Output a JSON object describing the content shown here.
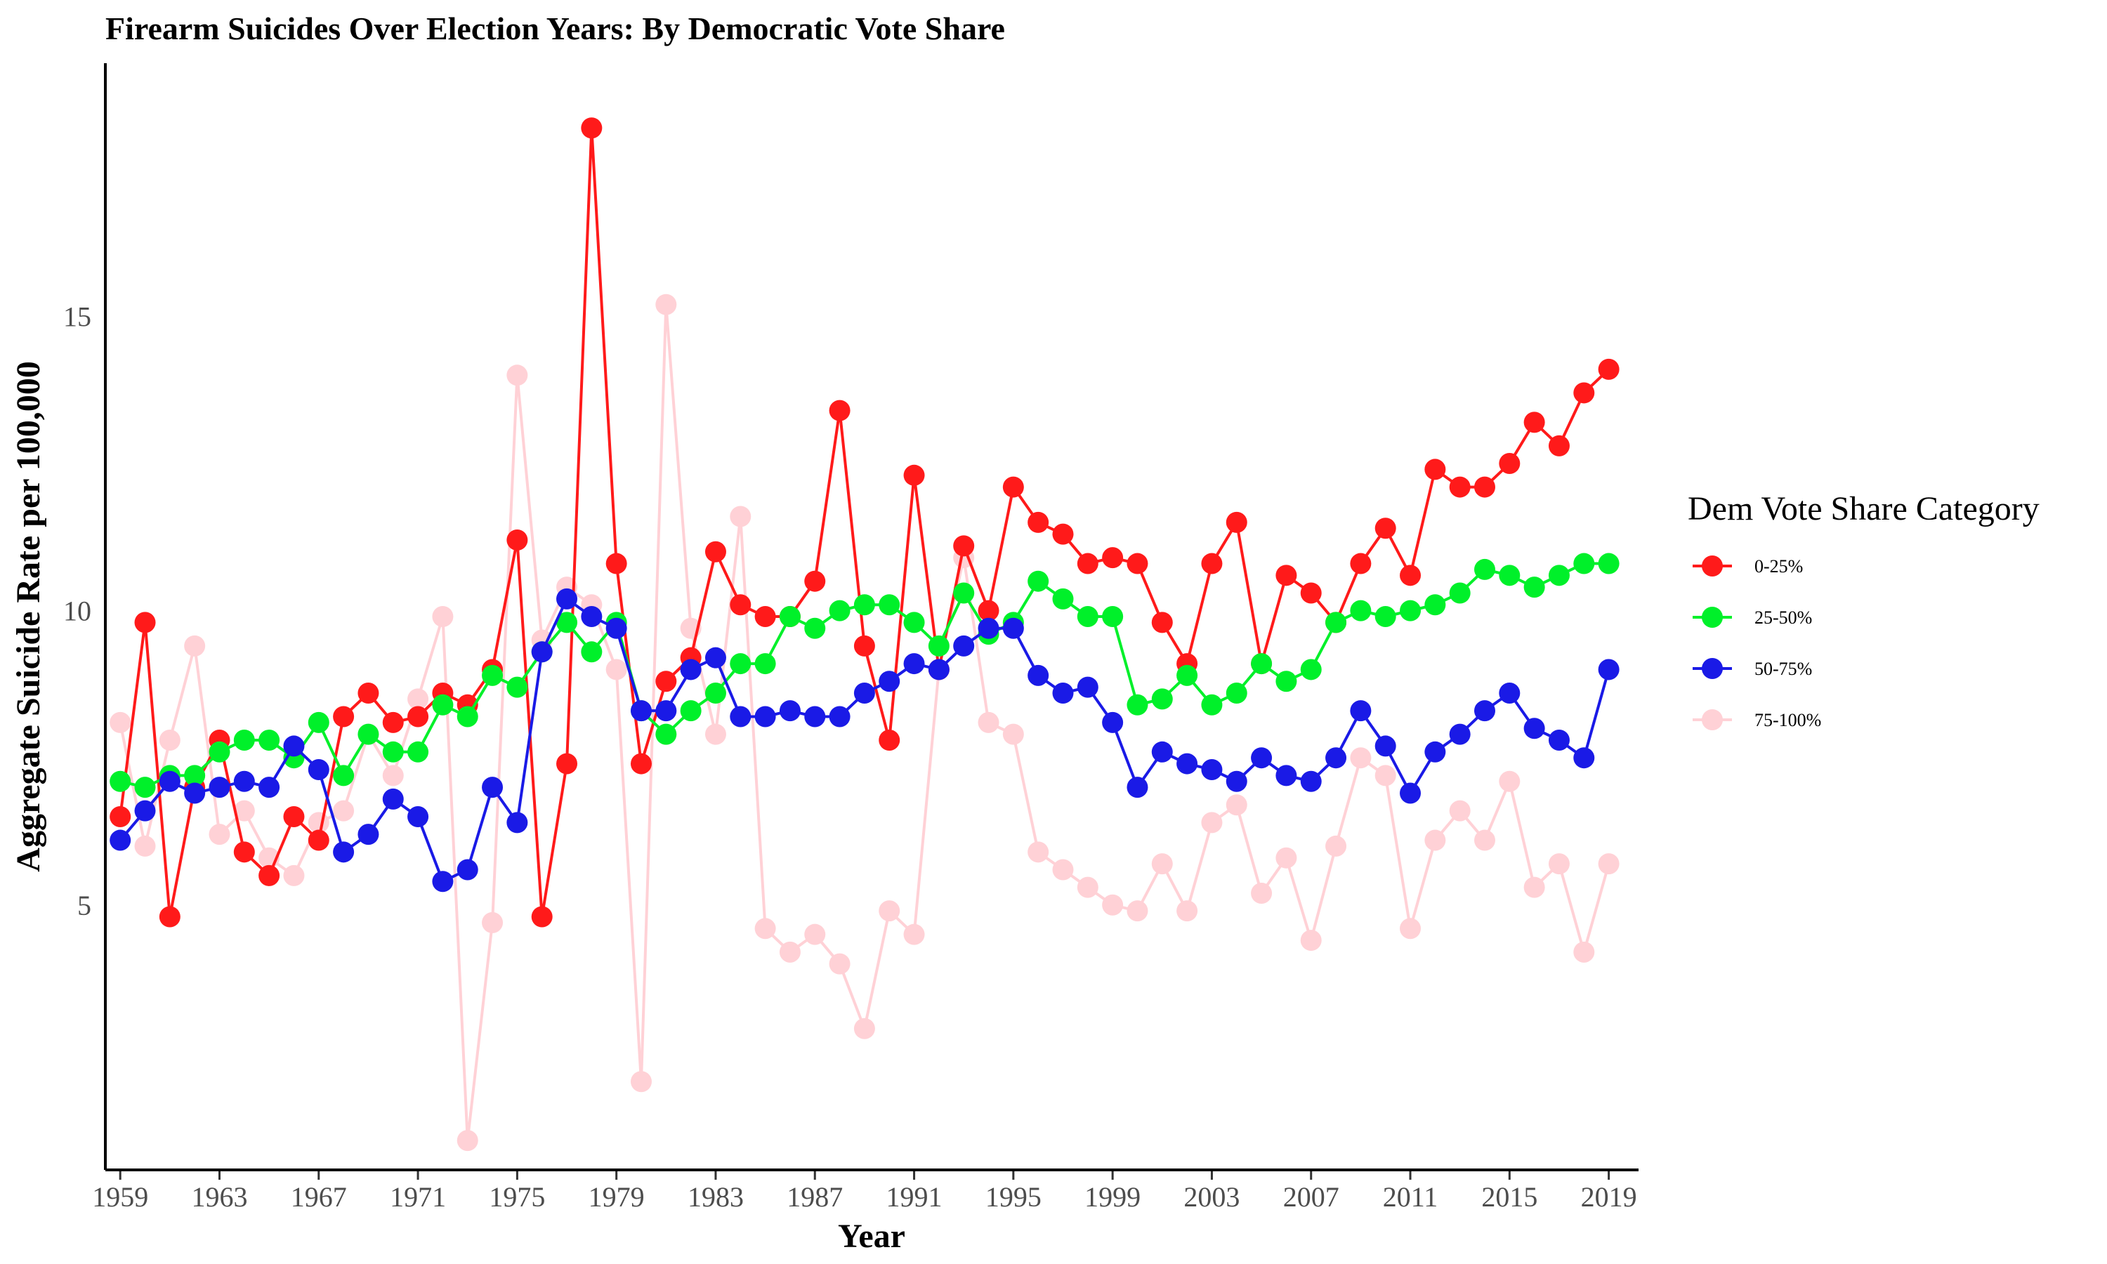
{
  "chart_data": {
    "type": "line",
    "title": "Firearm Suicides Over Election Years: By Democratic Vote Share",
    "xlabel": "Year",
    "ylabel": "Aggregate Suicide Rate per 100,000",
    "x_ticks": [
      "1959",
      "1963",
      "1967",
      "1971",
      "1975",
      "1979",
      "1983",
      "1987",
      "1991",
      "1995",
      "1999",
      "2003",
      "2007",
      "2011",
      "2015",
      "2019"
    ],
    "y_ticks": [
      "5",
      "10",
      "15"
    ],
    "xlim": [
      1958.4,
      2020.2
    ],
    "ylim": [
      0.5,
      19.3
    ],
    "grid": false,
    "legend": {
      "title": "Dem Vote Share Category",
      "position": "right"
    },
    "x": [
      1959,
      1960,
      1961,
      1962,
      1963,
      1964,
      1965,
      1966,
      1967,
      1968,
      1969,
      1970,
      1971,
      1972,
      1973,
      1974,
      1975,
      1976,
      1977,
      1978,
      1979,
      1980,
      1981,
      1982,
      1983,
      1984,
      1985,
      1986,
      1987,
      1988,
      1989,
      1990,
      1991,
      1992,
      1993,
      1994,
      1995,
      1996,
      1997,
      1998,
      1999,
      2000,
      2001,
      2002,
      2003,
      2004,
      2005,
      2006,
      2007,
      2008,
      2009,
      2010,
      2011,
      2012,
      2013,
      2014,
      2015,
      2016,
      2017,
      2018,
      2019
    ],
    "series": [
      {
        "name": "75-100%",
        "color": "#ffd1d6",
        "values": [
          8.1,
          6.0,
          7.8,
          9.4,
          6.2,
          6.6,
          5.8,
          5.5,
          6.4,
          6.6,
          7.9,
          7.2,
          8.5,
          9.9,
          1.0,
          4.7,
          14.0,
          9.5,
          10.4,
          10.1,
          9.0,
          2.0,
          15.2,
          9.7,
          7.9,
          11.6,
          4.6,
          4.2,
          4.5,
          4.0,
          2.9,
          4.9,
          4.5,
          9.0,
          10.9,
          8.1,
          7.9,
          5.9,
          5.6,
          5.3,
          5.0,
          4.9,
          5.7,
          4.9,
          6.4,
          6.7,
          5.2,
          5.8,
          4.4,
          6.0,
          7.5,
          7.2,
          4.6,
          6.1,
          6.6,
          6.1,
          7.1,
          5.3,
          5.7,
          4.2,
          5.7
        ]
      },
      {
        "name": "0-25%",
        "color": "#ff1a1a",
        "values": [
          6.5,
          9.8,
          4.8,
          7.0,
          7.8,
          5.9,
          5.5,
          6.5,
          6.1,
          8.2,
          8.6,
          8.1,
          8.2,
          8.6,
          8.4,
          9.0,
          11.2,
          4.8,
          7.4,
          18.2,
          10.8,
          7.4,
          8.8,
          9.2,
          11.0,
          10.1,
          9.9,
          9.9,
          10.5,
          13.4,
          9.4,
          7.8,
          12.3,
          9.0,
          11.1,
          10.0,
          12.1,
          11.5,
          11.3,
          10.8,
          10.9,
          10.8,
          9.8,
          9.1,
          10.8,
          11.5,
          9.1,
          10.6,
          10.3,
          9.8,
          10.8,
          11.4,
          10.6,
          12.4,
          12.1,
          12.1,
          12.5,
          13.2,
          12.8,
          13.7,
          14.1
        ]
      },
      {
        "name": "25-50%",
        "color": "#00f02a",
        "values": [
          7.1,
          7.0,
          7.2,
          7.2,
          7.6,
          7.8,
          7.8,
          7.5,
          8.1,
          7.2,
          7.9,
          7.6,
          7.6,
          8.4,
          8.2,
          8.9,
          8.7,
          9.3,
          9.8,
          9.3,
          9.8,
          8.3,
          7.9,
          8.3,
          8.6,
          9.1,
          9.1,
          9.9,
          9.7,
          10.0,
          10.1,
          10.1,
          9.8,
          9.4,
          10.3,
          9.6,
          9.8,
          10.5,
          10.2,
          9.9,
          9.9,
          8.4,
          8.5,
          8.9,
          8.4,
          8.6,
          9.1,
          8.8,
          9.0,
          9.8,
          10.0,
          9.9,
          10.0,
          10.1,
          10.3,
          10.7,
          10.6,
          10.4,
          10.6,
          10.8,
          10.8
        ]
      },
      {
        "name": "50-75%",
        "color": "#1a1ae6",
        "values": [
          6.1,
          6.6,
          7.1,
          6.9,
          7.0,
          7.1,
          7.0,
          7.7,
          7.3,
          5.9,
          6.2,
          6.8,
          6.5,
          5.4,
          5.6,
          7.0,
          6.4,
          9.3,
          10.2,
          9.9,
          9.7,
          8.3,
          8.3,
          9.0,
          9.2,
          8.2,
          8.2,
          8.3,
          8.2,
          8.2,
          8.6,
          8.8,
          9.1,
          9.0,
          9.4,
          9.7,
          9.7,
          8.9,
          8.6,
          8.7,
          8.1,
          7.0,
          7.6,
          7.4,
          7.3,
          7.1,
          7.5,
          7.2,
          7.1,
          7.5,
          8.3,
          7.7,
          6.9,
          7.6,
          7.9,
          8.3,
          8.6,
          8.0,
          7.8,
          7.5,
          9.0
        ]
      }
    ],
    "legend_order": [
      "0-25%",
      "25-50%",
      "50-75%",
      "75-100%"
    ]
  }
}
